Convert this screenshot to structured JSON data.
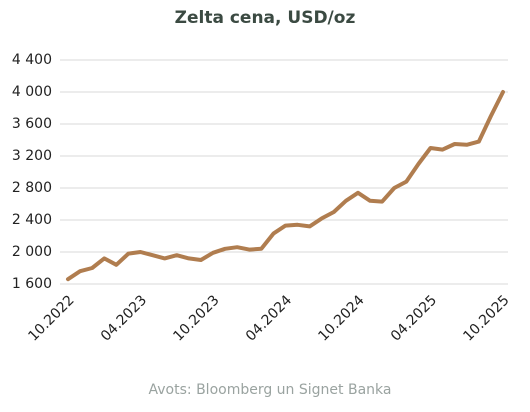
{
  "chart_data": {
    "type": "line",
    "title": "Zelta cena, USD/oz",
    "source": "Avots: Bloomberg un Signet Banka",
    "categories": [
      "10.2022",
      null,
      null,
      null,
      null,
      null,
      "04.2023",
      null,
      null,
      null,
      null,
      null,
      "10.2023",
      null,
      null,
      null,
      null,
      null,
      "04.2024",
      null,
      null,
      null,
      null,
      null,
      "10.2024",
      null,
      null,
      null,
      null,
      null,
      "04.2025",
      null,
      null,
      null,
      null,
      null,
      "10.2025"
    ],
    "values": [
      1660,
      1760,
      1800,
      1920,
      1840,
      1980,
      2000,
      1960,
      1920,
      1960,
      1920,
      1900,
      1990,
      2040,
      2060,
      2030,
      2040,
      2230,
      2330,
      2340,
      2320,
      2420,
      2500,
      2640,
      2740,
      2640,
      2630,
      2800,
      2880,
      3100,
      3300,
      3280,
      3350,
      3340,
      3380,
      3700,
      4000
    ],
    "color": "#b07d4f",
    "ylim": [
      1600,
      4400
    ],
    "yticks": [
      {
        "value": 1600,
        "label": "1 600"
      },
      {
        "value": 2000,
        "label": "2 000"
      },
      {
        "value": 2400,
        "label": "2 400"
      },
      {
        "value": 2800,
        "label": "2 800"
      },
      {
        "value": 3200,
        "label": "3 200"
      },
      {
        "value": 3600,
        "label": "3 600"
      },
      {
        "value": 4000,
        "label": "4 000"
      },
      {
        "value": 4400,
        "label": "4 400"
      }
    ],
    "grid": true
  }
}
